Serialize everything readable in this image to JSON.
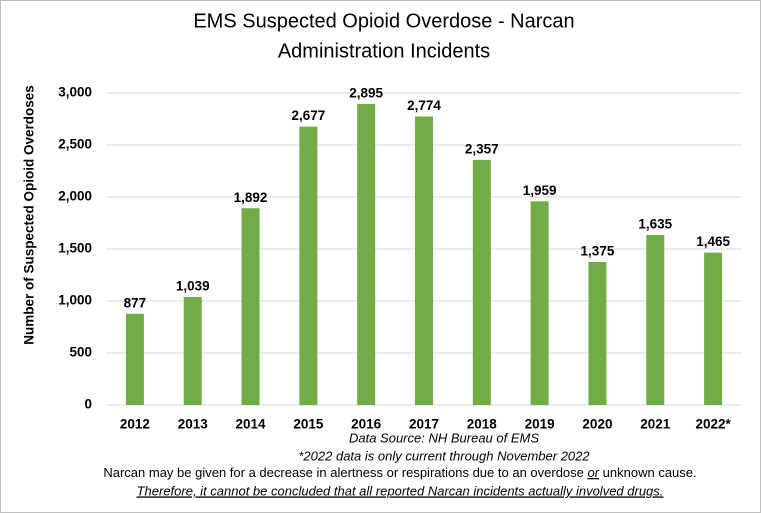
{
  "chart_data": {
    "type": "bar",
    "title": [
      "EMS Suspected Opioid Overdose - Narcan",
      "Administration Incidents"
    ],
    "y_label": "Number of Suspected Opioid Overdoses",
    "categories": [
      "2012",
      "2013",
      "2014",
      "2015",
      "2016",
      "2017",
      "2018",
      "2019",
      "2020",
      "2021",
      "2022*"
    ],
    "values": [
      877,
      1039,
      1892,
      2677,
      2895,
      2774,
      2357,
      1959,
      1375,
      1635,
      1465
    ],
    "value_labels": [
      "877",
      "1,039",
      "1,892",
      "2,677",
      "2,895",
      "2,774",
      "2,357",
      "1,959",
      "1,375",
      "1,635",
      "1,465"
    ],
    "color": "#70ad47",
    "ylim": [
      0,
      3000
    ],
    "yticks": [
      0,
      500,
      {
        "value": 1000,
        "label": "1,000"
      },
      {
        "value": 1500,
        "label": "1,500"
      },
      {
        "value": 2000,
        "label": "2,000"
      },
      {
        "value": 2500,
        "label": "2,500"
      },
      {
        "value": 3000,
        "label": "3,000"
      }
    ],
    "grid": true,
    "source": "Data Source: NH Bureau of EMS",
    "footnote": "*2022 data is only current through November 2022",
    "note": [
      "Narcan may be given for a decrease in alertness or respirations due to an overdose ",
      "or",
      " unknown cause."
    ],
    "disclaimer": "Therefore, it cannot be concluded that all reported Narcan incidents actually involved drugs."
  }
}
